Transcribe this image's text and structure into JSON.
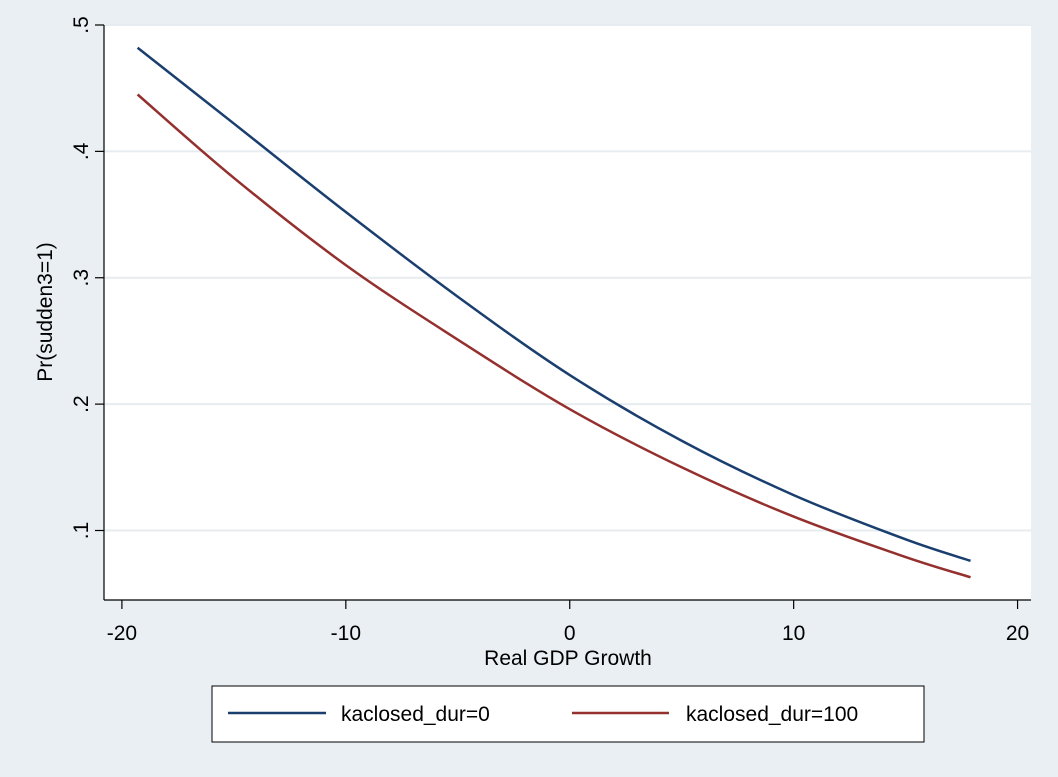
{
  "chart_data": {
    "type": "line",
    "title": "",
    "xlabel": "Real GDP Growth",
    "ylabel": "Pr(sudden3=1)",
    "xlim": [
      -20.8,
      20.6
    ],
    "ylim": [
      0.045,
      0.5
    ],
    "xticks": [
      -20,
      -10,
      0,
      10,
      20
    ],
    "xtick_labels": [
      "-20",
      "-10",
      "0",
      "10",
      "20"
    ],
    "yticks": [
      0.1,
      0.2,
      0.3,
      0.4,
      0.5
    ],
    "ytick_labels": [
      ".1",
      ".2",
      ".3",
      ".4",
      ".5"
    ],
    "grid": true,
    "legend_position": "bottom",
    "series": [
      {
        "name": "kaclosed_dur=0",
        "color": "#1a3f6f",
        "x": [
          -19.3,
          -15,
          -10,
          -5,
          0,
          5,
          10,
          15,
          17.9
        ],
        "y": [
          0.482,
          0.422,
          0.352,
          0.285,
          0.223,
          0.171,
          0.128,
          0.093,
          0.076
        ]
      },
      {
        "name": "kaclosed_dur=100",
        "color": "#94302e",
        "x": [
          -19.3,
          -15,
          -10,
          -5,
          0,
          5,
          10,
          15,
          17.9
        ],
        "y": [
          0.445,
          0.379,
          0.31,
          0.251,
          0.196,
          0.15,
          0.111,
          0.079,
          0.063
        ]
      }
    ]
  }
}
